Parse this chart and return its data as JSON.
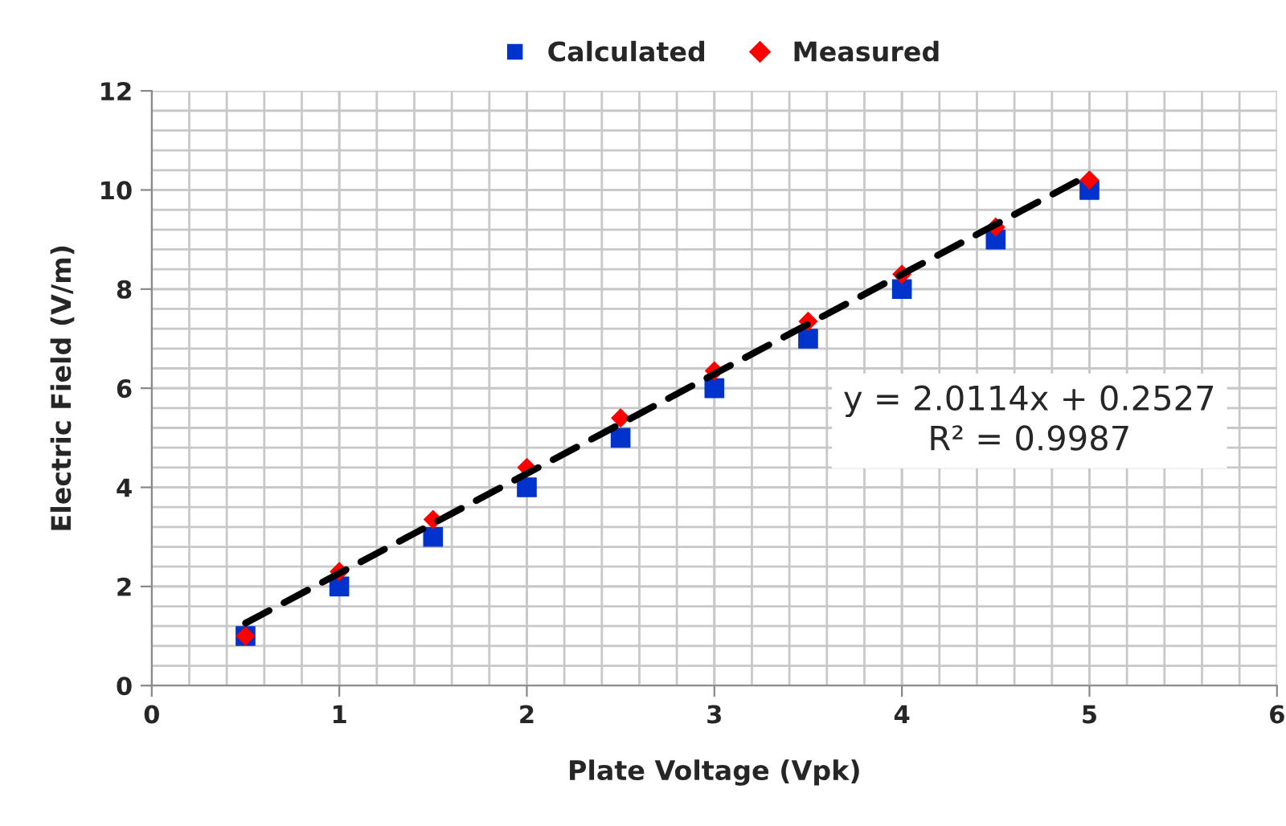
{
  "chart_data": {
    "type": "scatter",
    "xlabel": "Plate Voltage (Vpk)",
    "ylabel": "Electric Field (V/m)",
    "xlim": [
      0,
      6
    ],
    "xticks": [
      0,
      1,
      2,
      3,
      4,
      5,
      6
    ],
    "ylim": [
      0,
      12
    ],
    "yticks": [
      0,
      2,
      4,
      6,
      8,
      10,
      12
    ],
    "grid": true,
    "legend": "top",
    "x": [
      0.5,
      1,
      1.5,
      2,
      2.5,
      3,
      3.5,
      4,
      4.5,
      5
    ],
    "series": [
      {
        "name": "Calculated",
        "color": "#0033cc",
        "marker": "square",
        "values": [
          1,
          2,
          3,
          4,
          5,
          6,
          7,
          8,
          9,
          10
        ]
      },
      {
        "name": "Measured",
        "color": "#ff0000",
        "marker": "diamond",
        "values": [
          1.0,
          2.3,
          3.35,
          4.4,
          5.4,
          6.35,
          7.35,
          8.3,
          9.25,
          10.2
        ]
      },
      {
        "type": "line",
        "color": "#000000",
        "line_style": "dashed",
        "marker": "none",
        "x": [
          0.5,
          5
        ],
        "values": [
          1.26,
          10.31
        ]
      }
    ],
    "annotations": [
      "y = 2.0114x + 0.2527\nR² = 0.9987"
    ]
  }
}
